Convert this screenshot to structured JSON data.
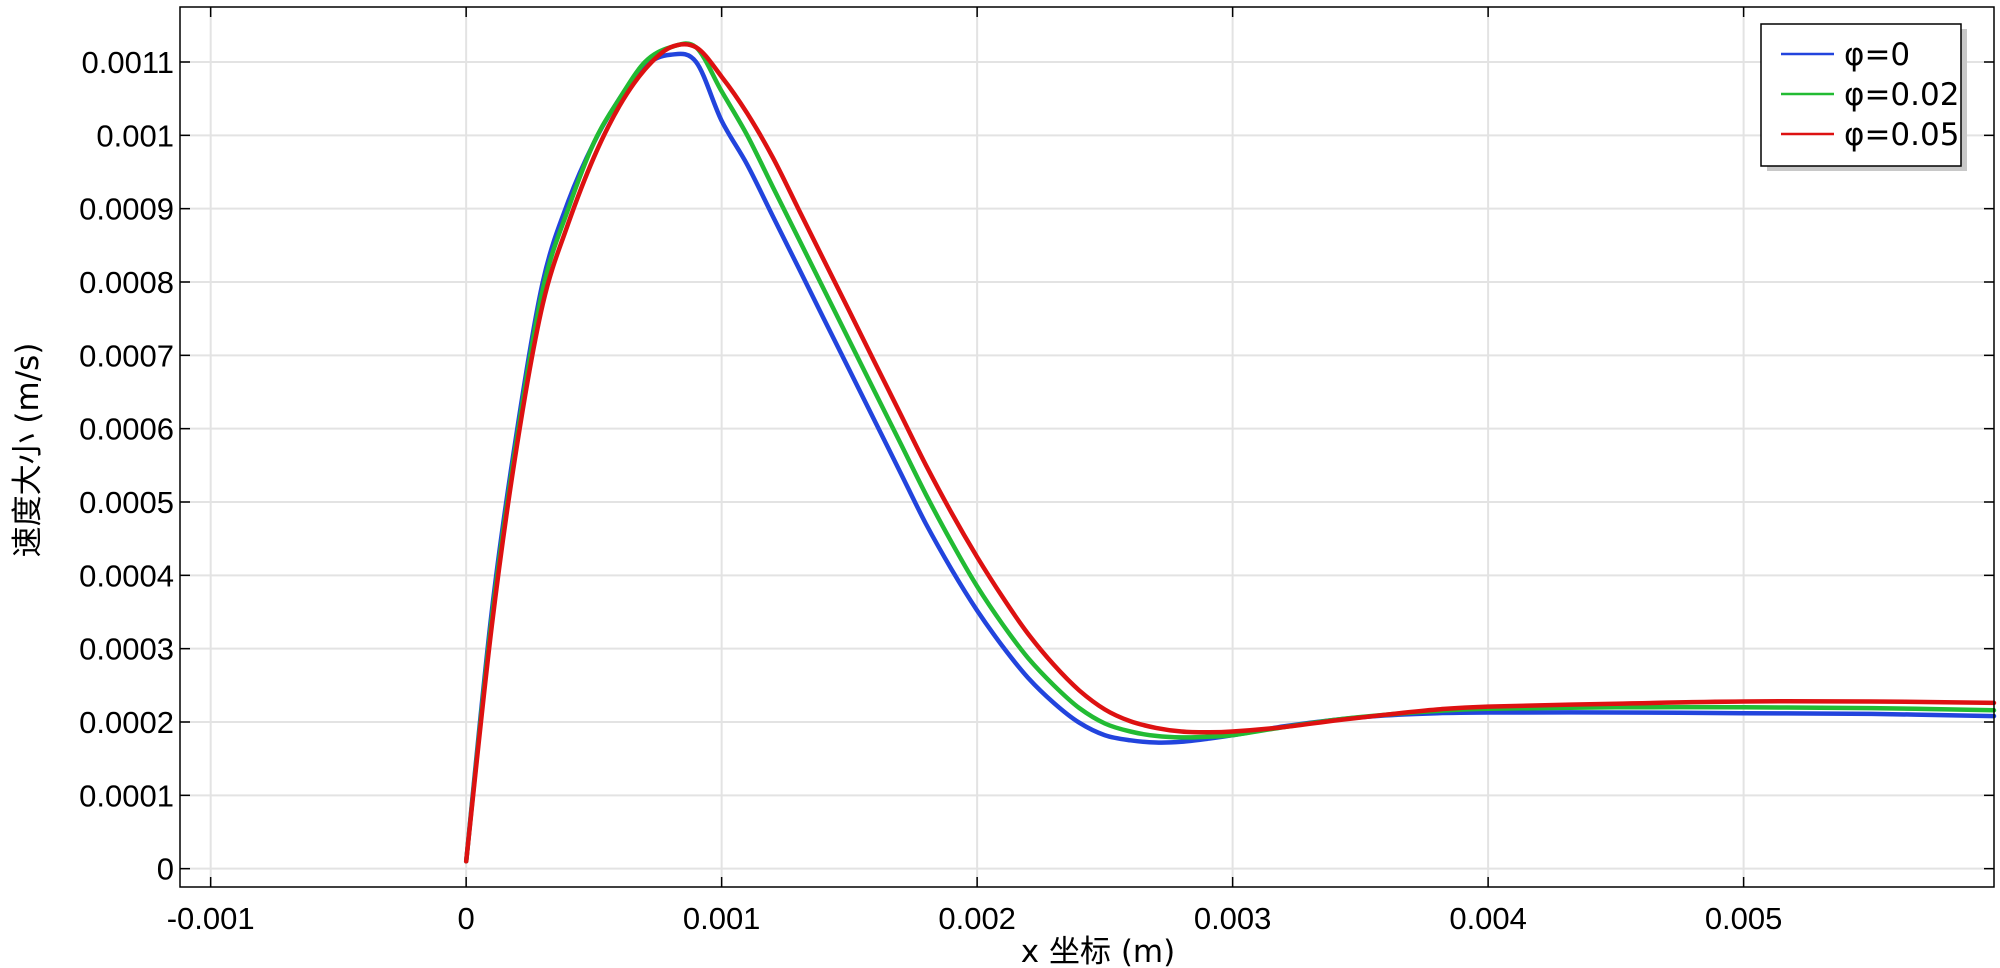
{
  "chart_data": {
    "type": "line",
    "title": "",
    "xlabel": "x 坐标 (m)",
    "ylabel": "速度大小 (m/s)",
    "xlim": [
      -0.00112,
      0.00598
    ],
    "ylim": [
      -2.5e-05,
      0.001175
    ],
    "xticks": [
      -0.001,
      0,
      0.001,
      0.002,
      0.003,
      0.004,
      0.005
    ],
    "xtick_labels": [
      "-0.001",
      "0",
      "0.001",
      "0.002",
      "0.003",
      "0.004",
      "0.005"
    ],
    "yticks": [
      0,
      0.0001,
      0.0002,
      0.0003,
      0.0004,
      0.0005,
      0.0006,
      0.0007,
      0.0008,
      0.0009,
      0.001,
      0.0011
    ],
    "ytick_labels": [
      "0",
      "0.0001",
      "0.0002",
      "0.0003",
      "0.0004",
      "0.0005",
      "0.0006",
      "0.0007",
      "0.0008",
      "0.0009",
      "0.001",
      "0.0011"
    ],
    "grid": true,
    "legend_position": "top-right",
    "series": [
      {
        "name": "φ=0",
        "color": "#2244dd",
        "x": [
          0,
          0.0001,
          0.0002,
          0.0003,
          0.0004,
          0.0005,
          0.0006,
          0.0007,
          0.0008,
          0.0009,
          0.001,
          0.0011,
          0.0012,
          0.0013,
          0.0014,
          0.0015,
          0.0016,
          0.0017,
          0.0018,
          0.0019,
          0.002,
          0.0021,
          0.0022,
          0.0023,
          0.0024,
          0.0025,
          0.0026,
          0.0027,
          0.0028,
          0.0029,
          0.003,
          0.0032,
          0.0034,
          0.0036,
          0.0038,
          0.004,
          0.0045,
          0.005,
          0.0055,
          0.00598
        ],
        "y": [
          1e-05,
          0.00035,
          0.0006,
          0.0008,
          0.00091,
          0.00099,
          0.00105,
          0.001095,
          0.00111,
          0.0011,
          0.00102,
          0.00096,
          0.00089,
          0.00082,
          0.00075,
          0.00068,
          0.00061,
          0.00054,
          0.00047,
          0.000408,
          0.000352,
          0.000303,
          0.00026,
          0.000226,
          0.000199,
          0.000182,
          0.000175,
          0.000172,
          0.000173,
          0.000177,
          0.000182,
          0.000194,
          0.000203,
          0.000209,
          0.000212,
          0.000213,
          0.000213,
          0.000212,
          0.000211,
          0.000208
        ]
      },
      {
        "name": "φ=0.02",
        "color": "#22bb33",
        "x": [
          0,
          0.0001,
          0.0002,
          0.0003,
          0.0004,
          0.0005,
          0.0006,
          0.0007,
          0.0008,
          0.0009,
          0.001,
          0.0011,
          0.0012,
          0.0013,
          0.0014,
          0.0015,
          0.0016,
          0.0017,
          0.0018,
          0.0019,
          0.002,
          0.0021,
          0.0022,
          0.0023,
          0.0024,
          0.0025,
          0.0026,
          0.0027,
          0.0028,
          0.0029,
          0.003,
          0.0032,
          0.0034,
          0.0036,
          0.0038,
          0.004,
          0.0045,
          0.005,
          0.0055,
          0.00598
        ],
        "y": [
          1e-05,
          0.00034,
          0.00059,
          0.00079,
          0.0009,
          0.00099,
          0.00105,
          0.0011,
          0.00112,
          0.00112,
          0.00106,
          0.001,
          0.00093,
          0.00086,
          0.00079,
          0.00072,
          0.00065,
          0.00058,
          0.00051,
          0.000445,
          0.000385,
          0.000333,
          0.000287,
          0.00025,
          0.000219,
          0.000198,
          0.000187,
          0.000181,
          0.000179,
          0.00018,
          0.000182,
          0.000193,
          0.000203,
          0.00021,
          0.000215,
          0.000218,
          0.00022,
          0.00022,
          0.000219,
          0.000216
        ]
      },
      {
        "name": "φ=0.05",
        "color": "#dd1111",
        "x": [
          0,
          0.0001,
          0.0002,
          0.0003,
          0.0004,
          0.0005,
          0.0006,
          0.0007,
          0.0008,
          0.0009,
          0.001,
          0.0011,
          0.0012,
          0.0013,
          0.0014,
          0.0015,
          0.0016,
          0.0017,
          0.0018,
          0.0019,
          0.002,
          0.0021,
          0.0022,
          0.0023,
          0.0024,
          0.0025,
          0.0026,
          0.0027,
          0.0028,
          0.0029,
          0.003,
          0.0032,
          0.0034,
          0.0036,
          0.0038,
          0.004,
          0.0045,
          0.005,
          0.0055,
          0.00598
        ],
        "y": [
          1e-05,
          0.00033,
          0.00058,
          0.00077,
          0.00088,
          0.00097,
          0.00104,
          0.00109,
          0.00112,
          0.00112,
          0.00108,
          0.00103,
          0.00097,
          0.0009,
          0.00083,
          0.00076,
          0.00069,
          0.00062,
          0.00055,
          0.000485,
          0.000425,
          0.00037,
          0.00032,
          0.000278,
          0.000243,
          0.000217,
          0.000201,
          0.000192,
          0.000187,
          0.000186,
          0.000187,
          0.000193,
          0.000202,
          0.00021,
          0.000217,
          0.000221,
          0.000225,
          0.000228,
          0.000228,
          0.000226
        ]
      }
    ]
  }
}
